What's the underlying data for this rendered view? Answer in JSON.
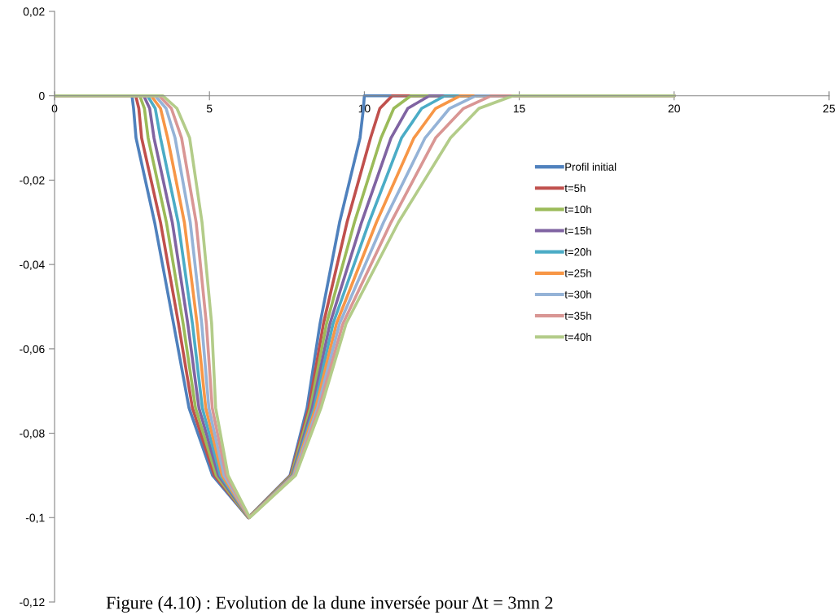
{
  "chart_data": {
    "type": "line",
    "xlim": [
      0,
      25
    ],
    "ylim": [
      -0.12,
      0.02
    ],
    "xticks": [
      0,
      5,
      10,
      15,
      20,
      25
    ],
    "yticks": [
      {
        "value": -0.12,
        "label": "-0,12"
      },
      {
        "value": -0.1,
        "label": "-0,1"
      },
      {
        "value": -0.08,
        "label": "-0,08"
      },
      {
        "value": -0.06,
        "label": "-0,06"
      },
      {
        "value": -0.04,
        "label": "-0,04"
      },
      {
        "value": -0.02,
        "label": "-0,02"
      },
      {
        "value": 0,
        "label": "0"
      },
      {
        "value": 0.02,
        "label": "0,02"
      }
    ],
    "grid": false,
    "legend": "right",
    "line_style": "solid",
    "marker": "none",
    "annotations": [
      "Figure (4.10) : Evolution de la dune inversée pour Δt = 3mn 2"
    ],
    "series": [
      {
        "name": "Profil initial",
        "color": "#4f81bd",
        "x": [
          0,
          2.5,
          2.55,
          2.63,
          3.23,
          3.84,
          4.34,
          5.1,
          6.25,
          7.6,
          8.15,
          8.57,
          9.2,
          9.86,
          9.97,
          10.0,
          20
        ],
        "values": [
          0,
          0,
          -0.003,
          -0.01,
          -0.03,
          -0.054,
          -0.074,
          -0.09,
          -0.1,
          -0.09,
          -0.074,
          -0.054,
          -0.03,
          -0.01,
          -0.003,
          0,
          0
        ]
      },
      {
        "name": "t=5h",
        "color": "#c0504d",
        "x": [
          0,
          2.62,
          2.72,
          2.81,
          3.42,
          4.0,
          4.45,
          5.16,
          6.26,
          7.62,
          8.21,
          8.68,
          9.44,
          10.2,
          10.5,
          10.9,
          20
        ],
        "values": [
          0,
          0,
          -0.003,
          -0.01,
          -0.03,
          -0.054,
          -0.074,
          -0.09,
          -0.1,
          -0.09,
          -0.074,
          -0.054,
          -0.03,
          -0.01,
          -0.003,
          0,
          0
        ]
      },
      {
        "name": "t=10h",
        "color": "#9bbb59",
        "x": [
          0,
          2.75,
          2.9,
          3.02,
          3.61,
          4.15,
          4.55,
          5.22,
          6.26,
          7.64,
          8.26,
          8.78,
          9.68,
          10.54,
          10.95,
          11.5,
          20
        ],
        "values": [
          0,
          0,
          -0.003,
          -0.01,
          -0.03,
          -0.054,
          -0.074,
          -0.09,
          -0.1,
          -0.09,
          -0.074,
          -0.054,
          -0.03,
          -0.01,
          -0.003,
          0,
          0
        ]
      },
      {
        "name": "t=15h",
        "color": "#8064a2",
        "x": [
          0,
          2.88,
          3.07,
          3.21,
          3.8,
          4.3,
          4.66,
          5.29,
          6.27,
          7.67,
          8.32,
          8.89,
          9.91,
          10.86,
          11.4,
          12.1,
          20
        ],
        "values": [
          0,
          0,
          -0.003,
          -0.01,
          -0.03,
          -0.054,
          -0.074,
          -0.09,
          -0.1,
          -0.09,
          -0.074,
          -0.054,
          -0.03,
          -0.01,
          -0.003,
          0,
          0
        ]
      },
      {
        "name": "t=20h",
        "color": "#4bacc6",
        "x": [
          0,
          3.0,
          3.25,
          3.42,
          3.99,
          4.45,
          4.77,
          5.35,
          6.28,
          7.69,
          8.38,
          8.99,
          10.15,
          11.2,
          11.85,
          12.6,
          20
        ],
        "values": [
          0,
          0,
          -0.003,
          -0.01,
          -0.03,
          -0.054,
          -0.074,
          -0.09,
          -0.1,
          -0.09,
          -0.074,
          -0.054,
          -0.03,
          -0.01,
          -0.003,
          0,
          0
        ]
      },
      {
        "name": "t=25h",
        "color": "#f79646",
        "x": [
          0,
          3.12,
          3.42,
          3.65,
          4.19,
          4.6,
          4.88,
          5.41,
          6.28,
          7.71,
          8.43,
          9.1,
          10.39,
          11.6,
          12.3,
          13.1,
          20
        ],
        "values": [
          0,
          0,
          -0.003,
          -0.01,
          -0.03,
          -0.054,
          -0.074,
          -0.09,
          -0.1,
          -0.09,
          -0.074,
          -0.054,
          -0.03,
          -0.01,
          -0.003,
          0,
          0
        ]
      },
      {
        "name": "t=30h",
        "color": "#95b3d7",
        "x": [
          0,
          3.25,
          3.6,
          3.89,
          4.38,
          4.75,
          4.98,
          5.47,
          6.29,
          7.73,
          8.49,
          9.2,
          10.62,
          11.96,
          12.75,
          13.6,
          20
        ],
        "values": [
          0,
          0,
          -0.003,
          -0.01,
          -0.03,
          -0.054,
          -0.074,
          -0.09,
          -0.1,
          -0.09,
          -0.074,
          -0.054,
          -0.03,
          -0.01,
          -0.003,
          0,
          0
        ]
      },
      {
        "name": "t=35h",
        "color": "#d99694",
        "x": [
          0,
          3.38,
          3.77,
          4.1,
          4.57,
          4.9,
          5.09,
          5.54,
          6.29,
          7.76,
          8.54,
          9.31,
          10.86,
          12.3,
          13.2,
          14.1,
          20
        ],
        "values": [
          0,
          0,
          -0.003,
          -0.01,
          -0.03,
          -0.054,
          -0.074,
          -0.09,
          -0.1,
          -0.09,
          -0.074,
          -0.054,
          -0.03,
          -0.01,
          -0.003,
          0,
          0
        ]
      },
      {
        "name": "t=40h",
        "color": "#b3cc89",
        "x": [
          0,
          3.5,
          3.95,
          4.36,
          4.76,
          5.07,
          5.2,
          5.6,
          6.3,
          7.78,
          8.6,
          9.41,
          11.1,
          12.78,
          13.7,
          14.8,
          20
        ],
        "values": [
          0,
          0,
          -0.003,
          -0.01,
          -0.03,
          -0.054,
          -0.074,
          -0.09,
          -0.1,
          -0.09,
          -0.074,
          -0.054,
          -0.03,
          -0.01,
          -0.003,
          0,
          0
        ]
      }
    ]
  }
}
